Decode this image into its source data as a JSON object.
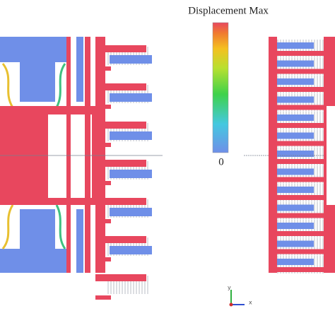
{
  "legend": {
    "title": "Displacement Max",
    "min_label": "0"
  },
  "triad": {
    "x": "x",
    "y": "y"
  }
}
